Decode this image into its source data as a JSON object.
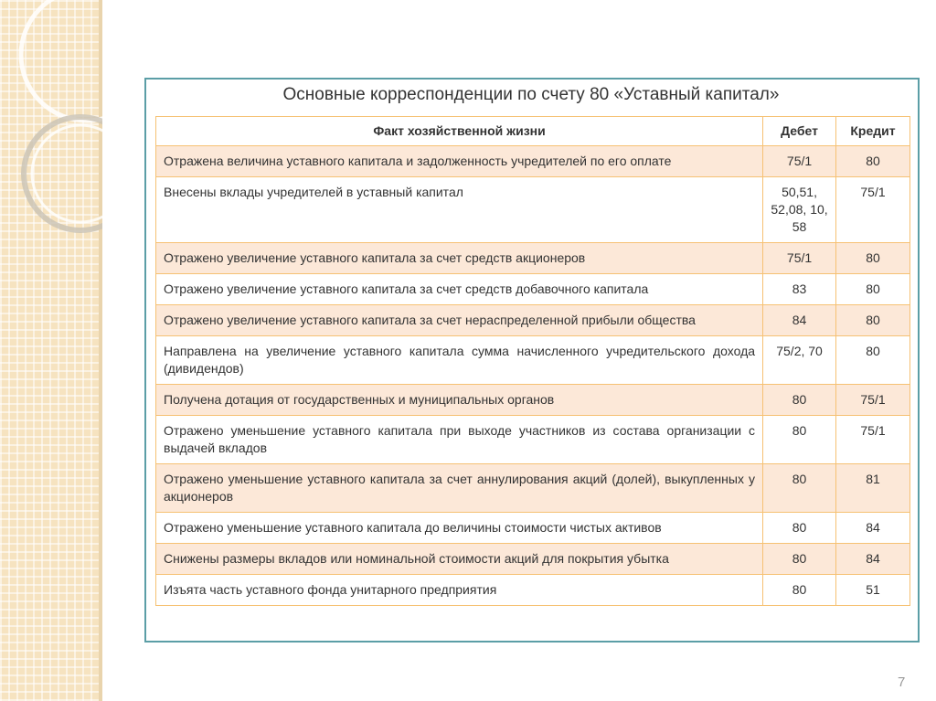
{
  "title": "Основные корреспонденции по счету 80 «Уставный капитал»",
  "table": {
    "header": [
      "Факт хозяйственной жизни",
      "Дебет",
      "Кредит"
    ],
    "rows": [
      [
        "Отражена величина уставного капитала и задолженность учредителей по его оплате",
        "75/1",
        "80"
      ],
      [
        "Внесены вклады учредителей в уставный капитал",
        "50,51, 52,08, 10, 58",
        "75/1"
      ],
      [
        "Отражено увеличение уставного капитала за счет средств акционеров",
        "75/1",
        "80"
      ],
      [
        "Отражено увеличение уставного капитала за счет средств добавочного капитала",
        "83",
        "80"
      ],
      [
        "Отражено увеличение уставного капитала за счет нераспределенной прибыли общества",
        "84",
        "80"
      ],
      [
        "Направлена на увеличение уставного капитала сумма начисленного учредительского дохода (дивидендов)",
        "75/2, 70",
        "80"
      ],
      [
        "Получена дотация от государственных и муниципальных органов",
        "80",
        "75/1"
      ],
      [
        "Отражено уменьшение уставного капитала при выходе участников из состава организации с выдачей вкладов",
        "80",
        "75/1"
      ],
      [
        "Отражено уменьшение уставного капитала за счет аннулирования акций (долей), выкупленных у акционеров",
        "80",
        "81"
      ],
      [
        "Отражено уменьшение уставного капитала до величины стоимости чистых активов",
        "80",
        "84"
      ],
      [
        "Снижены размеры вкладов или номинальной стоимости акций для покрытия убытка",
        "80",
        "84"
      ],
      [
        "Изъята часть уставного фонда унитарного предприятия",
        "80",
        "51"
      ]
    ]
  },
  "page_number": "7"
}
